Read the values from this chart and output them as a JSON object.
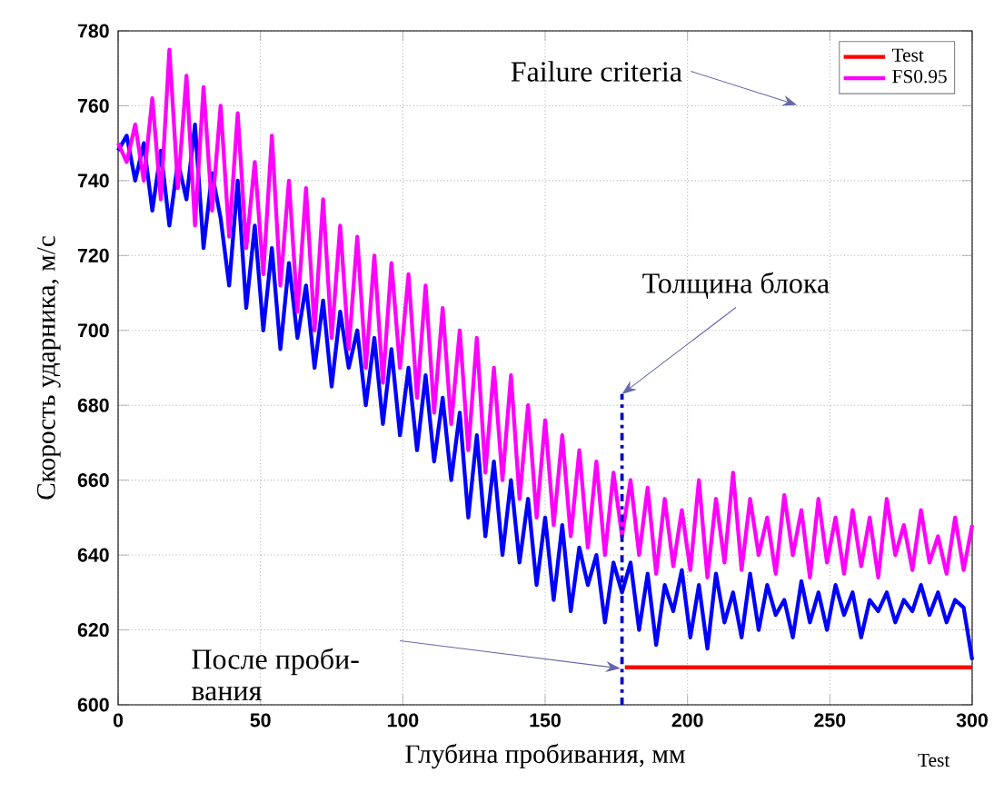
{
  "chart_data": {
    "type": "line",
    "xlabel": "Глубина пробивания, мм",
    "ylabel": "Скорость ударника, м/с",
    "xlim": [
      0,
      300
    ],
    "ylim": [
      600,
      780
    ],
    "xticks": [
      0,
      50,
      100,
      150,
      200,
      250,
      300
    ],
    "yticks": [
      600,
      620,
      640,
      660,
      680,
      700,
      720,
      740,
      760,
      780
    ],
    "grid": true,
    "legend": "top right",
    "marker": "none",
    "annotations": [
      "Failure criteria",
      {
        "text": "Толщина блока",
        "x": 177,
        "y": 683
      },
      "После проби- вания",
      "Test"
    ],
    "series": [
      {
        "name": "Test",
        "color": "#ff0000",
        "x": [
          178,
          300
        ],
        "values": [
          610,
          610
        ]
      },
      {
        "color": "#0000ff",
        "x": [
          0,
          3,
          6,
          9,
          12,
          15,
          18,
          21,
          24,
          27,
          30,
          33,
          36,
          39,
          42,
          45,
          48,
          51,
          54,
          57,
          60,
          63,
          66,
          69,
          72,
          75,
          78,
          81,
          84,
          87,
          90,
          93,
          96,
          99,
          102,
          105,
          108,
          111,
          114,
          117,
          120,
          123,
          126,
          129,
          132,
          135,
          138,
          141,
          144,
          147,
          150,
          153,
          156,
          159,
          162,
          165,
          168,
          171,
          174,
          177,
          180,
          183,
          186,
          189,
          192,
          195,
          198,
          201,
          204,
          207,
          210,
          213,
          216,
          219,
          222,
          225,
          228,
          231,
          234,
          237,
          240,
          243,
          246,
          249,
          252,
          255,
          258,
          261,
          264,
          267,
          270,
          273,
          276,
          279,
          282,
          285,
          288,
          291,
          294,
          297,
          300
        ],
        "values": [
          748,
          752,
          740,
          750,
          732,
          748,
          728,
          745,
          735,
          755,
          722,
          742,
          730,
          712,
          740,
          706,
          728,
          700,
          722,
          695,
          718,
          698,
          712,
          690,
          708,
          685,
          705,
          690,
          700,
          680,
          698,
          675,
          695,
          672,
          690,
          668,
          688,
          665,
          682,
          660,
          678,
          650,
          672,
          645,
          665,
          640,
          660,
          638,
          655,
          632,
          650,
          628,
          648,
          625,
          642,
          632,
          640,
          622,
          638,
          630,
          638,
          620,
          635,
          616,
          632,
          625,
          636,
          618,
          632,
          615,
          635,
          622,
          630,
          618,
          635,
          620,
          632,
          624,
          628,
          618,
          633,
          622,
          630,
          620,
          632,
          624,
          630,
          618,
          628,
          625,
          630,
          622,
          628,
          625,
          632,
          624,
          630,
          622,
          628,
          626,
          612
        ]
      },
      {
        "name": "FS0.95",
        "color": "#ff00ff",
        "x": [
          0,
          3,
          6,
          9,
          12,
          15,
          18,
          21,
          24,
          27,
          30,
          33,
          36,
          39,
          42,
          45,
          48,
          51,
          54,
          57,
          60,
          63,
          66,
          69,
          72,
          75,
          78,
          81,
          84,
          87,
          90,
          93,
          96,
          99,
          102,
          105,
          108,
          111,
          114,
          117,
          120,
          123,
          126,
          129,
          132,
          135,
          138,
          141,
          144,
          147,
          150,
          153,
          156,
          159,
          162,
          165,
          168,
          171,
          174,
          177,
          180,
          183,
          186,
          189,
          192,
          195,
          198,
          201,
          204,
          207,
          210,
          213,
          216,
          219,
          222,
          225,
          228,
          231,
          234,
          237,
          240,
          243,
          246,
          249,
          252,
          255,
          258,
          261,
          264,
          267,
          270,
          273,
          276,
          279,
          282,
          285,
          288,
          291,
          294,
          297,
          300
        ],
        "values": [
          750,
          745,
          755,
          740,
          762,
          735,
          775,
          738,
          768,
          728,
          765,
          732,
          760,
          725,
          758,
          722,
          745,
          715,
          752,
          712,
          740,
          705,
          738,
          700,
          735,
          698,
          728,
          695,
          725,
          690,
          720,
          686,
          718,
          690,
          715,
          682,
          712,
          678,
          706,
          675,
          700,
          668,
          698,
          662,
          690,
          660,
          688,
          655,
          680,
          650,
          676,
          648,
          672,
          645,
          668,
          642,
          665,
          640,
          662,
          645,
          660,
          640,
          658,
          635,
          655,
          637,
          652,
          636,
          660,
          634,
          655,
          638,
          662,
          636,
          655,
          640,
          650,
          635,
          656,
          640,
          652,
          634,
          655,
          638,
          650,
          635,
          652,
          637,
          650,
          634,
          655,
          640,
          648,
          636,
          652,
          638,
          645,
          635,
          650,
          636,
          648
        ]
      },
      {
        "type": "line",
        "line_style": "dashed",
        "color": "#0000cc",
        "x": [
          177,
          177
        ],
        "values": [
          600,
          683
        ]
      }
    ]
  }
}
